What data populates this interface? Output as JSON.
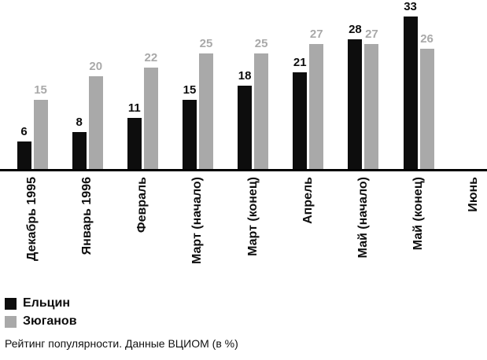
{
  "chart_data": {
    "type": "bar",
    "title": "",
    "caption": "Рейтинг популярности. Данные ВЦИОМ (в %)",
    "categories": [
      "Декабрь 1995",
      "Январь 1996",
      "Февраль",
      "Март (начало)",
      "Март (конец)",
      "Апрель",
      "Май (начало)",
      "Май (конец)",
      "Июнь"
    ],
    "series": [
      {
        "name": "Ельцин",
        "color": "#0d0d0d",
        "values": [
          6,
          8,
          11,
          15,
          18,
          21,
          28,
          33,
          null
        ]
      },
      {
        "name": "Зюганов",
        "color": "#a9a9a9",
        "values": [
          15,
          20,
          22,
          25,
          25,
          27,
          27,
          26,
          null
        ]
      }
    ],
    "ylim": [
      0,
      35
    ],
    "grid": false,
    "value_labels": true,
    "legend_position": "bottom-left",
    "axis_color": "#000000"
  }
}
